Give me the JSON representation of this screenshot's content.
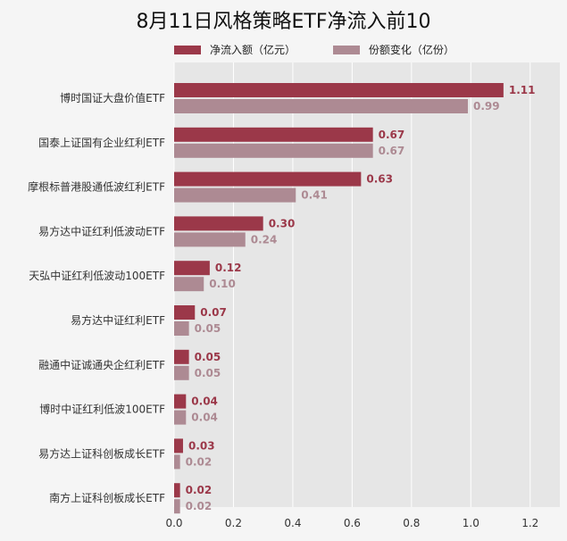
{
  "chart_data": {
    "type": "bar",
    "orientation": "horizontal",
    "title": "8月11日风格策略ETF净流入前10",
    "categories": [
      "博时国证大盘价值ETF",
      "国泰上证国有企业红利ETF",
      "摩根标普港股通低波红利ETF",
      "易方达中证红利低波动ETF",
      "天弘中证红利低波动100ETF",
      "易方达中证红利ETF",
      "融通中证诚通央企红利ETF",
      "博时中证红利低波100ETF",
      "易方达上证科创板成长ETF",
      "南方上证科创板成长ETF"
    ],
    "series": [
      {
        "name": "净流入额（亿元）",
        "values": [
          1.11,
          0.67,
          0.63,
          0.3,
          0.12,
          0.07,
          0.05,
          0.04,
          0.03,
          0.02
        ],
        "labels": [
          "1.11",
          "0.67",
          "0.63",
          "0.30",
          "0.12",
          "0.07",
          "0.05",
          "0.04",
          "0.03",
          "0.02"
        ]
      },
      {
        "name": "份额变化（亿份）",
        "values": [
          0.99,
          0.67,
          0.41,
          0.24,
          0.1,
          0.05,
          0.05,
          0.04,
          0.02,
          0.02
        ],
        "labels": [
          "0.99",
          "0.67",
          "0.41",
          "0.24",
          "0.10",
          "0.05",
          "0.05",
          "0.04",
          "0.02",
          "0.02"
        ]
      }
    ],
    "x_ticks": [
      "0.0",
      "0.2",
      "0.4",
      "0.6",
      "0.8",
      "1.0",
      "1.2"
    ],
    "xlim": [
      0,
      1.3
    ],
    "grid": true,
    "legend_position": "top",
    "colors": {
      "series1": "#9b3849",
      "series2": "#ad8a93",
      "plot_bg": "#e6e6e6",
      "grid": "#ffffff"
    }
  }
}
